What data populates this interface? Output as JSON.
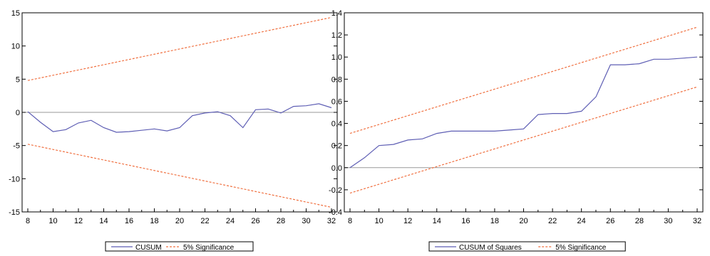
{
  "chart_data": [
    {
      "type": "line",
      "x": [
        8,
        9,
        10,
        11,
        12,
        13,
        14,
        15,
        16,
        17,
        18,
        19,
        20,
        21,
        22,
        23,
        24,
        25,
        26,
        27,
        28,
        29,
        30,
        31,
        32
      ],
      "xlim": [
        8,
        32
      ],
      "ylim": [
        -15,
        15
      ],
      "xticks": [
        "8",
        "10",
        "12",
        "14",
        "16",
        "18",
        "20",
        "22",
        "24",
        "26",
        "28",
        "30",
        "32"
      ],
      "yticks": [
        "15",
        "10",
        "5",
        "0",
        "-5",
        "-10",
        "-15"
      ],
      "grid": false,
      "zero_line": 0,
      "legend_position": "bottom-center",
      "series": [
        {
          "name": "CUSUM",
          "color": "#5e5eb4",
          "style": "solid",
          "values": [
            0.1,
            -1.5,
            -2.9,
            -2.6,
            -1.6,
            -1.2,
            -2.3,
            -3.0,
            -2.9,
            -2.7,
            -2.5,
            -2.8,
            -2.3,
            -0.5,
            -0.1,
            0.1,
            -0.5,
            -2.3,
            0.4,
            0.5,
            -0.1,
            0.9,
            1.0,
            1.3,
            0.7
          ]
        },
        {
          "name": "5% Significance",
          "color": "#f07040",
          "style": "dashed",
          "values_start_end": [
            [
              8,
              4.8
            ],
            [
              32,
              14.3
            ]
          ]
        },
        {
          "name": "",
          "color": "#f07040",
          "style": "dashed",
          "values_start_end": [
            [
              8,
              -4.8
            ],
            [
              32,
              -14.3
            ]
          ]
        }
      ],
      "legend": [
        "CUSUM",
        "5% Significance"
      ]
    },
    {
      "type": "line",
      "x": [
        8,
        9,
        10,
        11,
        12,
        13,
        14,
        15,
        16,
        17,
        18,
        19,
        20,
        21,
        22,
        23,
        24,
        25,
        26,
        27,
        28,
        29,
        30,
        31,
        32
      ],
      "xlim": [
        8,
        32
      ],
      "ylim": [
        -0.4,
        1.4
      ],
      "xticks": [
        "8",
        "10",
        "12",
        "14",
        "16",
        "18",
        "20",
        "22",
        "24",
        "26",
        "28",
        "30",
        "32"
      ],
      "yticks": [
        "1.4",
        "1.2",
        "1.0",
        "0.8",
        "0.6",
        "0.4",
        "0.2",
        "0.0",
        "-0.2",
        "-0.4"
      ],
      "grid": false,
      "zero_line": 0,
      "legend_position": "bottom-center",
      "series": [
        {
          "name": "CUSUM of Squares",
          "color": "#5e5eb4",
          "style": "solid",
          "values": [
            0.0,
            0.09,
            0.2,
            0.21,
            0.25,
            0.26,
            0.31,
            0.33,
            0.33,
            0.33,
            0.33,
            0.34,
            0.35,
            0.48,
            0.49,
            0.49,
            0.51,
            0.64,
            0.93,
            0.93,
            0.94,
            0.98,
            0.98,
            0.99,
            1.0
          ]
        },
        {
          "name": "5% Significance",
          "color": "#f07040",
          "style": "dashed",
          "values_start_end": [
            [
              8,
              0.31
            ],
            [
              32,
              1.27
            ]
          ]
        },
        {
          "name": "",
          "color": "#f07040",
          "style": "dashed",
          "values_start_end": [
            [
              8,
              -0.23
            ],
            [
              32,
              0.73
            ]
          ]
        }
      ],
      "legend": [
        "CUSUM of Squares",
        "5% Significance"
      ]
    }
  ]
}
